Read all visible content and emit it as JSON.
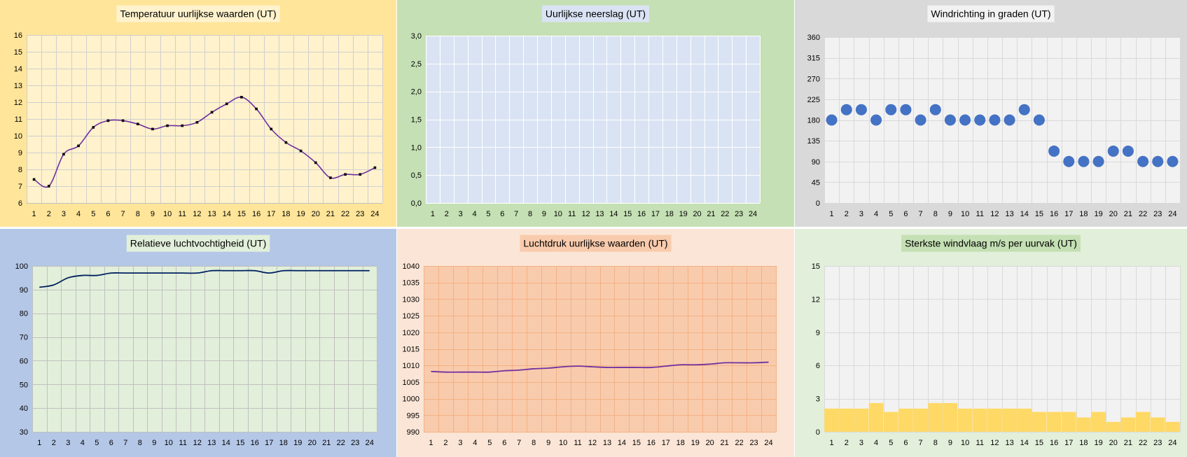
{
  "chart_data": [
    {
      "id": "temp",
      "type": "line",
      "title": "Temperatuur uurlijkse waarden (UT)",
      "categories": [
        "1",
        "2",
        "3",
        "4",
        "5",
        "6",
        "7",
        "8",
        "9",
        "10",
        "11",
        "12",
        "13",
        "14",
        "15",
        "16",
        "17",
        "18",
        "19",
        "20",
        "21",
        "22",
        "23",
        "24"
      ],
      "series": [
        {
          "values": [
            7.4,
            7.0,
            8.9,
            9.4,
            10.5,
            10.9,
            10.9,
            10.7,
            10.4,
            10.6,
            10.6,
            10.8,
            11.4,
            11.9,
            12.3,
            11.6,
            10.4,
            9.6,
            9.1,
            8.4,
            7.5,
            7.7,
            7.7,
            8.1
          ],
          "color": "#7030a0",
          "markers": true
        }
      ],
      "ylim": [
        6,
        16
      ],
      "yticks": [
        "6",
        "7",
        "8",
        "9",
        "10",
        "11",
        "12",
        "13",
        "14",
        "15",
        "16"
      ],
      "grid": true,
      "colors": {
        "panel": "#fee59a",
        "plot": "#fff2cc",
        "grid": "#cfcfcf",
        "title_bg": "#fff2cc"
      }
    },
    {
      "id": "rain",
      "type": "bar",
      "title": "Uurlijkse neerslag  (UT)",
      "categories": [
        "1",
        "2",
        "3",
        "4",
        "5",
        "6",
        "7",
        "8",
        "9",
        "10",
        "11",
        "12",
        "13",
        "14",
        "15",
        "16",
        "17",
        "18",
        "19",
        "20",
        "21",
        "22",
        "23",
        "24"
      ],
      "series": [
        {
          "values": [
            0,
            0,
            0,
            0,
            0,
            0,
            0,
            0,
            0,
            0,
            0,
            0,
            0,
            0,
            0,
            0,
            0,
            0,
            0,
            0,
            0,
            0,
            0,
            0
          ],
          "color": "#4472c4"
        }
      ],
      "ylim": [
        0,
        3
      ],
      "yticks": [
        "0,0",
        "0,5",
        "1,0",
        "1,5",
        "2,0",
        "2,5",
        "3,0"
      ],
      "grid": true,
      "colors": {
        "panel": "#c5e0b4",
        "plot": "#dae3f3",
        "grid": "#ffffff",
        "title_bg": "#dae3f3"
      }
    },
    {
      "id": "winddir",
      "type": "scatter",
      "title": "Windrichting in graden (UT)",
      "categories": [
        "1",
        "2",
        "3",
        "4",
        "5",
        "6",
        "7",
        "8",
        "9",
        "10",
        "11",
        "12",
        "13",
        "14",
        "15",
        "16",
        "17",
        "18",
        "19",
        "20",
        "21",
        "22",
        "23",
        "24"
      ],
      "series": [
        {
          "values": [
            180,
            202.5,
            202.5,
            180,
            202.5,
            202.5,
            180,
            202.5,
            180,
            180,
            180,
            180,
            180,
            202.5,
            180,
            112.5,
            90,
            90,
            90,
            112.5,
            112.5,
            90,
            90,
            90
          ],
          "color": "#4472c4"
        }
      ],
      "ylim": [
        0,
        360
      ],
      "yticks": [
        "0",
        "45",
        "90",
        "135",
        "180",
        "225",
        "270",
        "315",
        "360"
      ],
      "grid": true,
      "colors": {
        "panel": "#d9d9d9",
        "plot": "#f2f2f2",
        "grid": "#d9d9d9",
        "title_bg": "#f2f2f2"
      }
    },
    {
      "id": "humidity",
      "type": "line",
      "title": "Relatieve luchtvochtigheid (UT)",
      "categories": [
        "1",
        "2",
        "3",
        "4",
        "5",
        "6",
        "7",
        "8",
        "9",
        "10",
        "11",
        "12",
        "13",
        "14",
        "15",
        "16",
        "17",
        "18",
        "19",
        "20",
        "21",
        "22",
        "23",
        "24"
      ],
      "series": [
        {
          "values": [
            91,
            92,
            95,
            96,
            96,
            97,
            97,
            97,
            97,
            97,
            97,
            97,
            98,
            98,
            98,
            98,
            97,
            98,
            98,
            98,
            98,
            98,
            98,
            98
          ],
          "color": "#002060",
          "markers": false
        }
      ],
      "ylim": [
        30,
        100
      ],
      "yticks": [
        "30",
        "40",
        "50",
        "60",
        "70",
        "80",
        "90",
        "100"
      ],
      "grid": true,
      "colors": {
        "panel": "#b4c7e7",
        "plot": "#e2efda",
        "grid": "#c0c0c0",
        "title_bg": "#e2efda"
      }
    },
    {
      "id": "pressure",
      "type": "line",
      "title": "Luchtdruk uurlijkse waarden (UT)",
      "categories": [
        "1",
        "2",
        "3",
        "4",
        "5",
        "6",
        "7",
        "8",
        "9",
        "10",
        "11",
        "12",
        "13",
        "14",
        "15",
        "16",
        "17",
        "18",
        "19",
        "20",
        "21",
        "22",
        "23",
        "24"
      ],
      "series": [
        {
          "values": [
            1008.2,
            1008.0,
            1008.0,
            1008.0,
            1008.0,
            1008.4,
            1008.6,
            1009.0,
            1009.2,
            1009.6,
            1009.8,
            1009.6,
            1009.4,
            1009.4,
            1009.4,
            1009.4,
            1009.8,
            1010.2,
            1010.2,
            1010.4,
            1010.8,
            1010.8,
            1010.8,
            1011.0
          ],
          "color": "#7030a0",
          "markers": false
        }
      ],
      "ylim": [
        990,
        1040
      ],
      "yticks": [
        "990",
        "995",
        "1000",
        "1005",
        "1010",
        "1015",
        "1020",
        "1025",
        "1030",
        "1035",
        "1040"
      ],
      "grid": true,
      "colors": {
        "panel": "#fbe5d6",
        "plot": "#f8cbad",
        "grid": "#f4b183",
        "title_bg": "#f8cbad"
      }
    },
    {
      "id": "gust",
      "type": "bar",
      "title": "Sterkste windvlaag m/s per uurvak (UT)",
      "categories": [
        "1",
        "2",
        "3",
        "4",
        "5",
        "6",
        "7",
        "8",
        "9",
        "10",
        "11",
        "12",
        "13",
        "14",
        "15",
        "16",
        "17",
        "18",
        "19",
        "20",
        "21",
        "22",
        "23",
        "24"
      ],
      "series": [
        {
          "values": [
            2.1,
            2.1,
            2.1,
            2.6,
            1.8,
            2.1,
            2.1,
            2.6,
            2.6,
            2.1,
            2.1,
            2.1,
            2.1,
            2.1,
            1.8,
            1.8,
            1.8,
            1.3,
            1.8,
            0.9,
            1.3,
            1.8,
            1.3,
            0.9
          ],
          "color": "#ffd966"
        }
      ],
      "ylim": [
        0,
        15
      ],
      "yticks": [
        "0",
        "3",
        "6",
        "9",
        "12",
        "15"
      ],
      "grid": true,
      "colors": {
        "panel": "#e2efda",
        "plot": "#f2f2f2",
        "grid": "#d9d9d9",
        "title_bg": "#c5e0b4"
      }
    }
  ]
}
